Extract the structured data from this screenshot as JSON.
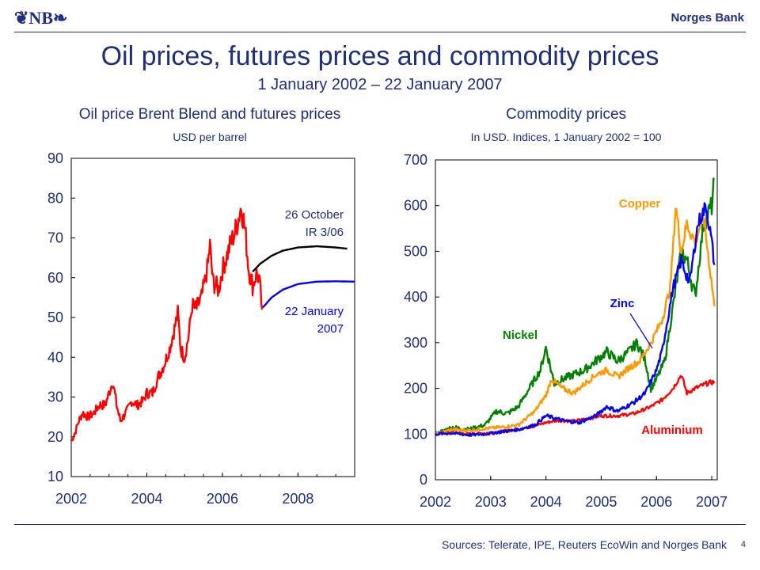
{
  "header": {
    "logo": "❦NB❧",
    "bank": "Norges Bank"
  },
  "title": "Oil prices, futures prices and commodity prices",
  "subtitle": "1 January 2002 – 22 January 2007",
  "footer": {
    "source": "Sources: Telerate, IPE, Reuters EcoWin and Norges Bank",
    "page": "4"
  },
  "colors": {
    "text": "#1f2f7a",
    "red": "#ff0000",
    "black": "#000000",
    "blue": "#0000ff",
    "green": "#008000",
    "orange": "#ff9900"
  },
  "chart_data": [
    {
      "type": "line",
      "title": "Oil price Brent Blend and futures prices",
      "ylabel": "USD per barrel",
      "xlim": [
        2002,
        2009.5
      ],
      "ylim": [
        10,
        90
      ],
      "yticks": [
        10,
        20,
        30,
        40,
        50,
        60,
        70,
        80,
        90
      ],
      "xticks": [
        2002,
        2004,
        2006,
        2008
      ],
      "annotations": [
        {
          "text": "26 October",
          "series": "IR 3/06 futures"
        },
        {
          "text": "IR 3/06",
          "series": "IR 3/06 futures"
        },
        {
          "text": "22 January",
          "series": "22 January 2007 futures"
        },
        {
          "text": "2007",
          "series": "22 January 2007 futures"
        }
      ],
      "series": [
        {
          "name": "Oil price Brent Blend",
          "color": "#ff0000",
          "x": [
            2002.0,
            2002.1,
            2002.2,
            2002.3,
            2002.45,
            2002.6,
            2002.75,
            2002.9,
            2003.0,
            2003.1,
            2003.2,
            2003.3,
            2003.45,
            2003.6,
            2003.75,
            2003.9,
            2004.0,
            2004.15,
            2004.3,
            2004.45,
            2004.6,
            2004.75,
            2004.82,
            2004.9,
            2005.0,
            2005.1,
            2005.2,
            2005.3,
            2005.45,
            2005.6,
            2005.67,
            2005.75,
            2005.9,
            2006.0,
            2006.1,
            2006.2,
            2006.35,
            2006.5,
            2006.6,
            2006.7,
            2006.8,
            2006.9,
            2006.97,
            2007.05
          ],
          "values": [
            19,
            21,
            24,
            26,
            25,
            26,
            28,
            28,
            31,
            34,
            28,
            24,
            26,
            29,
            28,
            29,
            31,
            31,
            35,
            38,
            42,
            48,
            51,
            42,
            40,
            45,
            53,
            52,
            55,
            62,
            68,
            59,
            57,
            62,
            65,
            68,
            72,
            78,
            72,
            62,
            58,
            61,
            60,
            52
          ]
        },
        {
          "name": "IR 3/06 futures",
          "color": "#000000",
          "x": [
            2006.8,
            2007.0,
            2007.3,
            2007.6,
            2008.0,
            2008.5,
            2009.0,
            2009.3
          ],
          "values": [
            61.5,
            63.5,
            65.5,
            66.8,
            67.6,
            67.9,
            67.6,
            67.3
          ]
        },
        {
          "name": "22 January 2007 futures",
          "color": "#0000ff",
          "x": [
            2007.07,
            2007.3,
            2007.6,
            2008.0,
            2008.5,
            2009.0,
            2009.5
          ],
          "values": [
            52.5,
            55.0,
            57.0,
            58.4,
            59.0,
            59.1,
            59.0
          ]
        }
      ]
    },
    {
      "type": "line",
      "title": "Commodity prices",
      "ylabel": "In USD. Indices, 1 January 2002 = 100",
      "xlim": [
        2002,
        2007.1
      ],
      "ylim": [
        0,
        700
      ],
      "yticks": [
        0,
        100,
        200,
        300,
        400,
        500,
        600,
        700
      ],
      "xticks": [
        2002,
        2003,
        2004,
        2005,
        2006,
        2007
      ],
      "series": [
        {
          "name": "Aluminium",
          "color": "#ff0000",
          "x": [
            2002.0,
            2002.3,
            2002.6,
            2002.9,
            2003.2,
            2003.5,
            2003.8,
            2004.0,
            2004.2,
            2004.5,
            2004.8,
            2005.0,
            2005.3,
            2005.6,
            2005.9,
            2006.1,
            2006.3,
            2006.45,
            2006.55,
            2006.7,
            2006.9,
            2007.05
          ],
          "values": [
            100,
            104,
            100,
            102,
            106,
            110,
            118,
            125,
            130,
            128,
            135,
            140,
            140,
            145,
            160,
            175,
            200,
            230,
            190,
            200,
            210,
            215
          ]
        },
        {
          "name": "Nickel",
          "color": "#008000",
          "x": [
            2002.0,
            2002.3,
            2002.6,
            2002.9,
            2003.1,
            2003.3,
            2003.5,
            2003.7,
            2003.9,
            2004.0,
            2004.15,
            2004.3,
            2004.5,
            2004.7,
            2004.9,
            2005.1,
            2005.3,
            2005.5,
            2005.65,
            2005.8,
            2005.9,
            2006.0,
            2006.15,
            2006.3,
            2006.45,
            2006.55,
            2006.7,
            2006.85,
            2007.0,
            2007.05
          ],
          "values": [
            100,
            115,
            110,
            120,
            150,
            145,
            160,
            200,
            240,
            290,
            210,
            220,
            230,
            240,
            260,
            280,
            260,
            280,
            300,
            260,
            200,
            220,
            260,
            380,
            500,
            480,
            400,
            560,
            600,
            660
          ]
        },
        {
          "name": "Copper",
          "color": "#ff9900",
          "x": [
            2002.0,
            2002.3,
            2002.6,
            2002.9,
            2003.2,
            2003.5,
            2003.8,
            2004.0,
            2004.1,
            2004.3,
            2004.5,
            2004.7,
            2004.9,
            2005.1,
            2005.3,
            2005.5,
            2005.7,
            2005.9,
            2006.1,
            2006.25,
            2006.35,
            2006.45,
            2006.55,
            2006.7,
            2006.85,
            2006.95,
            2007.05
          ],
          "values": [
            100,
            110,
            108,
            112,
            115,
            120,
            150,
            185,
            220,
            200,
            190,
            210,
            230,
            240,
            225,
            245,
            260,
            300,
            350,
            420,
            600,
            500,
            560,
            520,
            580,
            480,
            380
          ]
        },
        {
          "name": "Zinc",
          "color": "#0000ff",
          "x": [
            2002.0,
            2002.3,
            2002.6,
            2002.9,
            2003.2,
            2003.5,
            2003.8,
            2004.0,
            2004.3,
            2004.6,
            2004.9,
            2005.1,
            2005.3,
            2005.6,
            2005.8,
            2006.0,
            2006.1,
            2006.2,
            2006.3,
            2006.45,
            2006.6,
            2006.75,
            2006.9,
            2007.0,
            2007.05
          ],
          "values": [
            100,
            102,
            98,
            100,
            105,
            110,
            120,
            140,
            130,
            125,
            140,
            160,
            150,
            170,
            190,
            240,
            280,
            350,
            420,
            480,
            430,
            560,
            600,
            520,
            470
          ]
        }
      ],
      "annotations": [
        {
          "text": "Copper",
          "series": "Copper"
        },
        {
          "text": "Zinc",
          "series": "Zinc"
        },
        {
          "text": "Nickel",
          "series": "Nickel"
        },
        {
          "text": "Aluminium",
          "series": "Aluminium"
        }
      ]
    }
  ]
}
